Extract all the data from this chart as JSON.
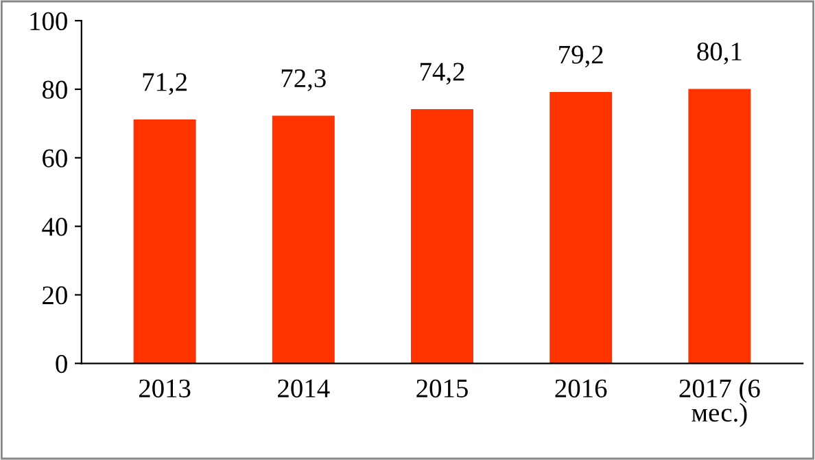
{
  "chart_data": {
    "type": "bar",
    "categories": [
      "2013",
      "2014",
      "2015",
      "2016",
      "2017 (6\nмес.)"
    ],
    "values": [
      71.2,
      72.3,
      74.2,
      79.2,
      80.1
    ],
    "value_labels": [
      "71,2",
      "72,3",
      "74,2",
      "79,2",
      "80,1"
    ],
    "color": "#ff3300",
    "ylim": [
      0,
      100
    ],
    "yticks": [
      0,
      20,
      40,
      60,
      80,
      100
    ],
    "grid": false,
    "legend": false
  }
}
